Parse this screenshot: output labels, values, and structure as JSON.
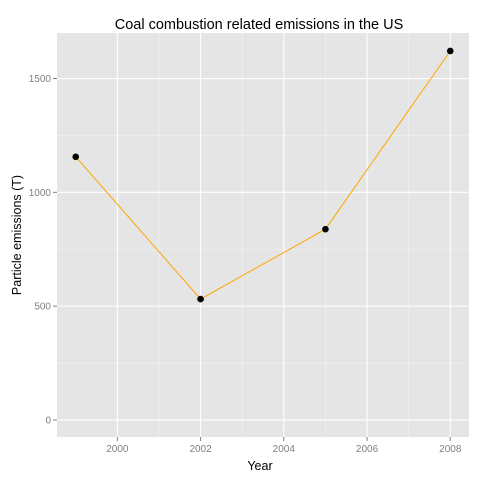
{
  "chart_data": {
    "type": "line",
    "title": "Coal combustion related emissions in the US",
    "xlabel": "Year",
    "ylabel": "Particle emissions (T)",
    "x": [
      1999,
      2002,
      2005,
      2008
    ],
    "series": [
      {
        "values": [
          1156,
          531,
          838,
          1621
        ]
      }
    ],
    "xlim": [
      1998.55,
      2008.45
    ],
    "ylim": [
      -75,
      1700
    ],
    "xticks": [
      2000,
      2002,
      2004,
      2006,
      2008
    ],
    "yticks": [
      0,
      500,
      1000,
      1500
    ],
    "xtick_labels": [
      "2000",
      "2002",
      "2004",
      "2006",
      "2008"
    ],
    "ytick_labels": [
      "0",
      "500",
      "1000",
      "1500"
    ],
    "grid": true,
    "line_color": "#ffa500",
    "point_color": "#000000",
    "panel_color": "#e5e5e5"
  }
}
